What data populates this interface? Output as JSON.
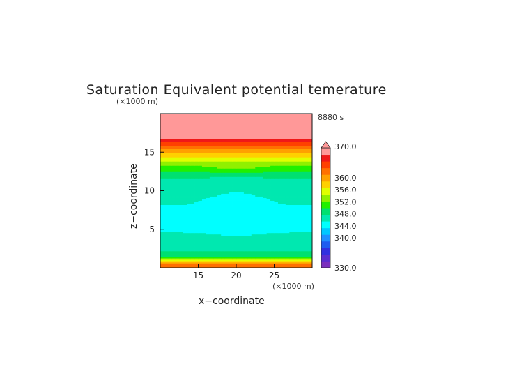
{
  "chart_data": {
    "type": "heatmap",
    "title": "Saturation Equivalent potential temerature",
    "xlabel": "x−coordinate",
    "ylabel": "z−coordinate",
    "x_unit": "(×1000 m)",
    "y_unit": "(×1000 m)",
    "time_label": "8880 s",
    "xlim": [
      10,
      30
    ],
    "ylim": [
      0,
      20
    ],
    "x_ticks": [
      15,
      20,
      25
    ],
    "y_ticks": [
      5,
      10,
      15
    ],
    "colorbar": {
      "min": 330,
      "max": 370,
      "labels": [
        "370.0",
        "360.0",
        "356.0",
        "352.0",
        "348.0",
        "344.0",
        "340.0",
        "330.0"
      ],
      "label_values": [
        370,
        360,
        356,
        352,
        348,
        344,
        340,
        330
      ]
    },
    "profile_z": [
      0,
      0.3,
      1.0,
      1.5,
      2.5,
      4,
      5.5,
      7,
      9,
      10.5,
      12,
      13.5,
      14.2,
      14.6,
      15.2,
      16,
      17,
      20
    ],
    "profile_value": [
      361,
      363,
      355,
      350,
      347,
      346,
      345,
      345,
      346,
      347,
      348,
      353,
      356,
      358,
      360,
      364,
      369,
      370
    ]
  },
  "colors": {
    "levels": [
      "#7b2fbe",
      "#5a2dd0",
      "#3030e0",
      "#1d5cf0",
      "#1e90ff",
      "#00c8ff",
      "#00ffff",
      "#00e8b0",
      "#00e070",
      "#20f000",
      "#90f000",
      "#e0ff00",
      "#ffd000",
      "#ffa000",
      "#ff7000",
      "#ff4000",
      "#f01818",
      "#ff9898"
    ]
  }
}
